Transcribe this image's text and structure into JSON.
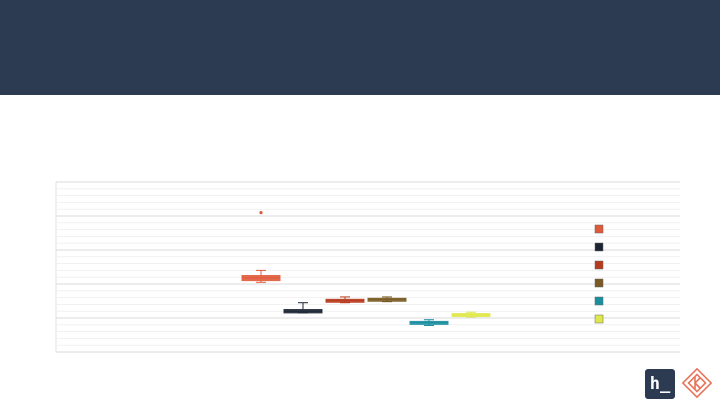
{
  "header": {
    "color": "#2c3a52"
  },
  "chart_data": {
    "type": "box",
    "title": "",
    "xlabel": "",
    "ylabel": "",
    "ylim": [
      0,
      5
    ],
    "grid": true,
    "legend_position": "right",
    "series": [
      {
        "color": "#e05a3a",
        "whisker_low": 2.05,
        "q1": 2.1,
        "median": 2.18,
        "q3": 2.25,
        "whisker_high": 2.4,
        "outliers": [
          4.1
        ]
      },
      {
        "color": "#1b2533",
        "whisker_low": 1.15,
        "q1": 1.15,
        "median": 1.2,
        "q3": 1.25,
        "whisker_high": 1.45,
        "outliers": []
      },
      {
        "color": "#b83a1e",
        "whisker_low": 1.45,
        "q1": 1.5,
        "median": 1.52,
        "q3": 1.55,
        "whisker_high": 1.62,
        "outliers": []
      },
      {
        "color": "#7a5a22",
        "whisker_low": 1.48,
        "q1": 1.52,
        "median": 1.55,
        "q3": 1.58,
        "whisker_high": 1.62,
        "outliers": []
      },
      {
        "color": "#1a8fa0",
        "whisker_low": 0.78,
        "q1": 0.84,
        "median": 0.87,
        "q3": 0.9,
        "whisker_high": 0.95,
        "outliers": []
      },
      {
        "color": "#dfe84a",
        "whisker_low": 1.03,
        "q1": 1.06,
        "median": 1.1,
        "q3": 1.13,
        "whisker_high": 1.17,
        "outliers": []
      }
    ]
  },
  "logos": {
    "h_logo_text": "h_",
    "h_logo_color": "#2c3a52",
    "k_logo_color": "#e8735a"
  }
}
